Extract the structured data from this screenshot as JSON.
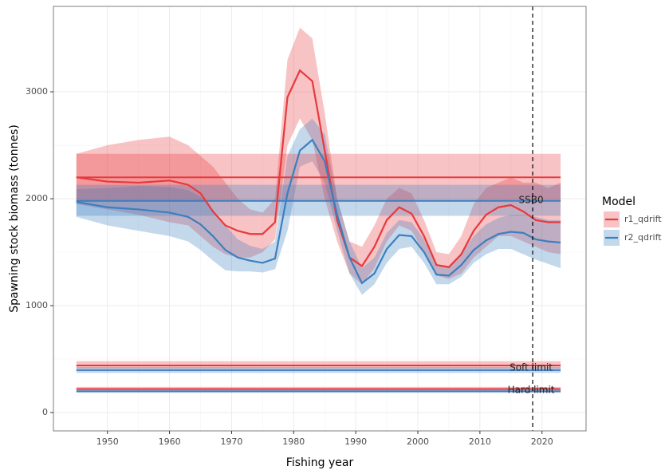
{
  "chart_data": {
    "type": "ribbon_line",
    "x_label": "Fishing year",
    "y_label": "Spawning stock biomass (tonnes)",
    "legend_title": "Model",
    "xlim": [
      1941.3,
      2027.1
    ],
    "ylim": [
      -172,
      3799
    ],
    "xticks": [
      1950,
      1960,
      1970,
      1980,
      1990,
      2000,
      2010,
      2020
    ],
    "yticks": [
      0,
      1000,
      2000,
      3000
    ],
    "grid": true,
    "vline": 2018.5,
    "x": [
      1945,
      1950,
      1955,
      1960,
      1963,
      1965,
      1967,
      1969,
      1971,
      1973,
      1975,
      1977,
      1979,
      1981,
      1983,
      1985,
      1987,
      1989,
      1991,
      1993,
      1995,
      1997,
      1999,
      2001,
      2003,
      2005,
      2007,
      2009,
      2011,
      2013,
      2015,
      2017,
      2019,
      2021,
      2023
    ],
    "series": [
      {
        "name": "r1_qdrift",
        "color": "#e8393c",
        "values": [
          2200,
          2160,
          2150,
          2170,
          2130,
          2050,
          1880,
          1750,
          1700,
          1670,
          1670,
          1780,
          2950,
          3200,
          3100,
          2450,
          1800,
          1450,
          1370,
          1550,
          1800,
          1920,
          1860,
          1650,
          1380,
          1360,
          1480,
          1700,
          1850,
          1920,
          1940,
          1880,
          1800,
          1780,
          1780
        ],
        "lower": [
          1950,
          1900,
          1850,
          1780,
          1750,
          1650,
          1550,
          1480,
          1450,
          1450,
          1500,
          1620,
          2500,
          2750,
          2550,
          2000,
          1600,
          1300,
          1200,
          1350,
          1600,
          1750,
          1700,
          1500,
          1280,
          1250,
          1300,
          1450,
          1550,
          1650,
          1650,
          1600,
          1550,
          1500,
          1480
        ],
        "upper": [
          2420,
          2500,
          2550,
          2580,
          2500,
          2400,
          2300,
          2150,
          2000,
          1900,
          1870,
          2000,
          3300,
          3600,
          3500,
          2800,
          2000,
          1600,
          1550,
          1750,
          2000,
          2100,
          2050,
          1800,
          1500,
          1480,
          1650,
          1950,
          2100,
          2150,
          2200,
          2150,
          2150,
          2100,
          2150
        ]
      },
      {
        "name": "r2_qdrift",
        "color": "#3b7fbf",
        "values": [
          1970,
          1920,
          1900,
          1870,
          1830,
          1760,
          1650,
          1520,
          1450,
          1420,
          1400,
          1440,
          2050,
          2450,
          2550,
          2350,
          1850,
          1450,
          1210,
          1300,
          1530,
          1660,
          1650,
          1500,
          1290,
          1280,
          1380,
          1520,
          1610,
          1670,
          1690,
          1680,
          1620,
          1600,
          1590
        ],
        "lower": [
          1830,
          1750,
          1700,
          1650,
          1600,
          1520,
          1420,
          1330,
          1320,
          1320,
          1310,
          1340,
          1700,
          2300,
          2350,
          2150,
          1700,
          1300,
          1100,
          1200,
          1400,
          1530,
          1550,
          1400,
          1200,
          1200,
          1270,
          1400,
          1480,
          1530,
          1530,
          1480,
          1430,
          1390,
          1350
        ],
        "upper": [
          2090,
          2100,
          2120,
          2110,
          2080,
          2020,
          1900,
          1750,
          1620,
          1560,
          1530,
          1600,
          2400,
          2650,
          2750,
          2600,
          2000,
          1600,
          1350,
          1450,
          1680,
          1800,
          1780,
          1620,
          1380,
          1370,
          1490,
          1650,
          1760,
          1820,
          1850,
          1850,
          1830,
          1800,
          1800
        ]
      }
    ],
    "reference_lines": [
      {
        "label": "SSB0",
        "x_range": [
          1945,
          2023
        ],
        "levels": [
          {
            "value": 2200,
            "lower": 1980,
            "upper": 2420
          },
          {
            "value": 1980,
            "lower": 1840,
            "upper": 2130
          }
        ]
      },
      {
        "label": "Soft limit",
        "x_range": [
          1945,
          2023
        ],
        "levels": [
          {
            "value": 440,
            "lower": 410,
            "upper": 480
          },
          {
            "value": 396,
            "lower": 370,
            "upper": 425
          }
        ]
      },
      {
        "label": "Hard limit",
        "x_range": [
          1945,
          2023
        ],
        "levels": [
          {
            "value": 220,
            "lower": 205,
            "upper": 240
          },
          {
            "value": 198,
            "lower": 185,
            "upper": 212
          }
        ]
      }
    ]
  }
}
